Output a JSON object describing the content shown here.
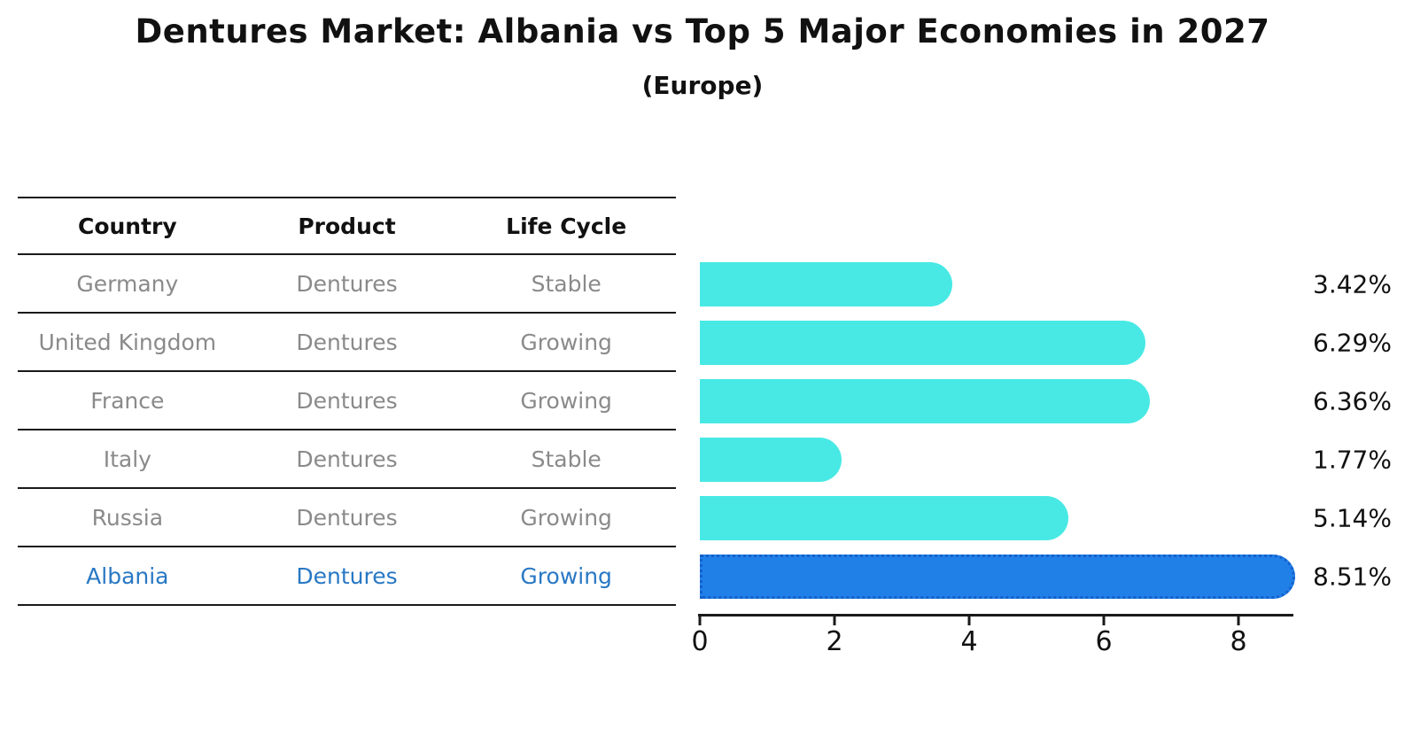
{
  "header": {
    "title": "Dentures Market: Albania vs Top 5 Major Economies in 2027",
    "subtitle": "(Europe)"
  },
  "table": {
    "headers": [
      "Country",
      "Product",
      "Life Cycle"
    ],
    "rows": [
      {
        "country": "Germany",
        "product": "Dentures",
        "life_cycle": "Stable",
        "highlighted": false
      },
      {
        "country": "United Kingdom",
        "product": "Dentures",
        "life_cycle": "Growing",
        "highlighted": false
      },
      {
        "country": "France",
        "product": "Dentures",
        "life_cycle": "Growing",
        "highlighted": false
      },
      {
        "country": "Italy",
        "product": "Dentures",
        "life_cycle": "Stable",
        "highlighted": false
      },
      {
        "country": "Russia",
        "product": "Dentures",
        "life_cycle": "Growing",
        "highlighted": false
      },
      {
        "country": "Albania",
        "product": "Dentures",
        "life_cycle": "Growing",
        "highlighted": true
      }
    ]
  },
  "chart_data": {
    "type": "bar",
    "orientation": "horizontal",
    "title": "Dentures Market: Albania vs Top 5 Major Economies in 2027",
    "subtitle": "(Europe)",
    "categories": [
      "Germany",
      "United Kingdom",
      "France",
      "Italy",
      "Russia",
      "Albania"
    ],
    "values": [
      3.42,
      6.29,
      6.36,
      1.77,
      5.14,
      8.51
    ],
    "value_labels": [
      "3.42%",
      "6.29%",
      "6.36%",
      "1.77%",
      "5.14%",
      "8.51%"
    ],
    "x_ticks": [
      0,
      2,
      4,
      6,
      8
    ],
    "xlim": [
      0,
      8.8
    ],
    "grid": false,
    "legend": false,
    "highlight_index": 5,
    "bar_color": "#48e9e5",
    "highlight_color": "#2080e8"
  },
  "colors": {
    "bar_cyan": "#48e9e5",
    "bar_blue": "#2080e8",
    "bar_blue_dot_border": "#1560cc",
    "highlight_text": "#2878c4",
    "table_text": "#8a8a8a",
    "heading_text": "#111111",
    "line": "#1a1a1a"
  }
}
